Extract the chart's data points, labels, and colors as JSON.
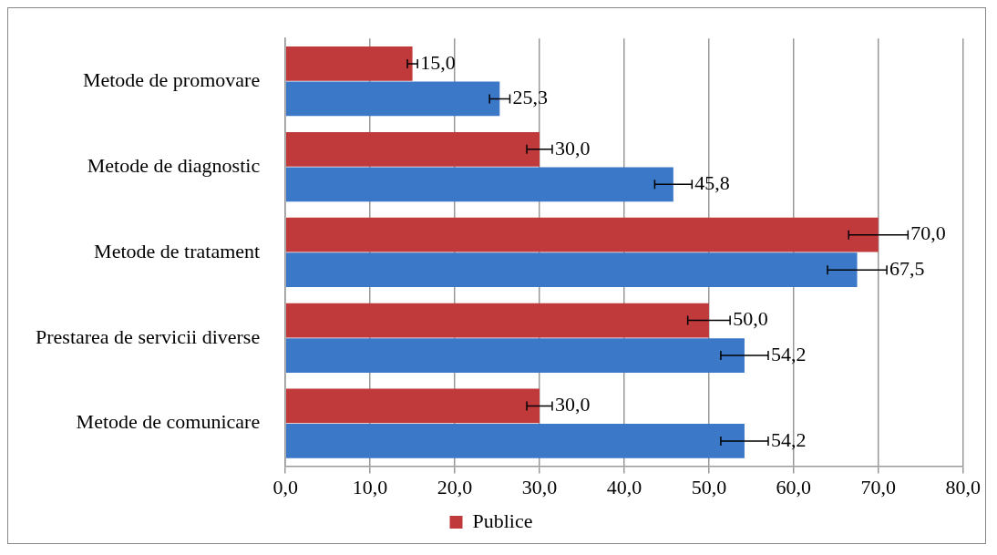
{
  "chart_data": {
    "type": "bar",
    "orientation": "horizontal",
    "categories": [
      "Metode de promovare",
      "Metode de diagnostic",
      "Metode de tratament",
      "Prestarea de servicii diverse",
      "Metode de comunicare"
    ],
    "series": [
      {
        "name": "Publice",
        "color": "#c0393b",
        "values": [
          15.0,
          30.0,
          70.0,
          50.0,
          30.0
        ],
        "errors": [
          0.6,
          1.5,
          3.5,
          2.5,
          1.5
        ],
        "value_labels": [
          "15,0",
          "30,0",
          "70,0",
          "50,0",
          "30,0"
        ]
      },
      {
        "color": "#3b78c8",
        "values": [
          25.3,
          45.8,
          67.5,
          54.2,
          54.2
        ],
        "errors": [
          1.2,
          2.2,
          3.5,
          2.8,
          2.8
        ],
        "value_labels": [
          "25,3",
          "45,8",
          "67,5",
          "54,2",
          "54,2"
        ]
      }
    ],
    "xlim": [
      0,
      80
    ],
    "xticks": [
      {
        "value": 0,
        "label": "0,0"
      },
      {
        "value": 10,
        "label": "10,0"
      },
      {
        "value": 20,
        "label": "20,0"
      },
      {
        "value": 30,
        "label": "30,0"
      },
      {
        "value": 40,
        "label": "40,0"
      },
      {
        "value": 50,
        "label": "50,0"
      },
      {
        "value": 60,
        "label": "60,0"
      },
      {
        "value": 70,
        "label": "70,0"
      },
      {
        "value": 80,
        "label": "80,0"
      }
    ],
    "grid": "x",
    "legend": "bottom"
  }
}
